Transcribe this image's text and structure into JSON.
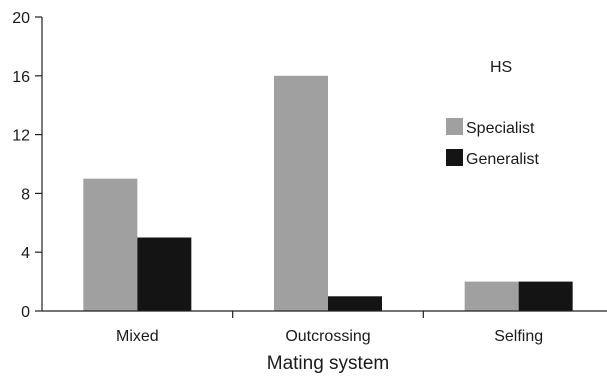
{
  "chart_data": {
    "type": "bar",
    "title": "",
    "xlabel": "Mating system",
    "ylabel": "",
    "ylim": [
      0,
      20
    ],
    "yticks": [
      0,
      4,
      8,
      12,
      16,
      20
    ],
    "categories": [
      "Mixed",
      "Outcrossing",
      "Selfing"
    ],
    "legend_title": "HS",
    "legend_position": "top-right",
    "grid": false,
    "series": [
      {
        "name": "Specialist",
        "color": "#a0a0a0",
        "values": [
          9,
          16,
          2
        ]
      },
      {
        "name": "Generalist",
        "color": "#141414",
        "values": [
          5,
          1,
          2
        ]
      }
    ]
  }
}
